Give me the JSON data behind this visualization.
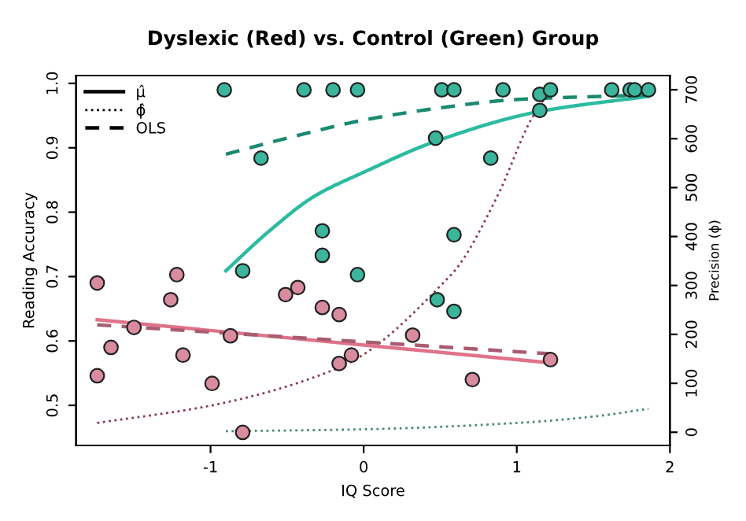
{
  "chart_data": {
    "type": "scatter",
    "title": "Dyslexic (Red) vs. Control (Green) Group",
    "xlabel": "IQ Score",
    "ylabel": "Reading Accuracy",
    "y2label": "Precision (ϕ)",
    "xlim": [
      -1.878,
      2.0
    ],
    "xticks": [
      -1,
      0,
      1,
      2
    ],
    "ylim": [
      0.4377,
      1.0122
    ],
    "yticks": [
      0.5,
      0.6,
      0.7,
      0.8,
      0.9,
      {
        "value": 1,
        "label": "1.0"
      }
    ],
    "y2lim": [
      -27,
      729
    ],
    "y2ticks": [
      0,
      100,
      200,
      300,
      400,
      500,
      600,
      700
    ],
    "grid": false,
    "annotations": [
      "μ̂",
      "ϕ̂",
      "OLS"
    ],
    "series": [
      {
        "marker": "circle",
        "color": "#3bb59b",
        "x": [
          -0.91,
          -0.39,
          -0.2,
          -0.04,
          0.51,
          0.59,
          0.91,
          1.15,
          1.22,
          1.62,
          1.74,
          1.77,
          1.86,
          -0.67,
          -0.27,
          -0.27,
          -0.79,
          -0.04,
          0.47,
          0.83,
          1.15,
          0.59,
          0.48,
          0.59
        ],
        "values": [
          0.99,
          0.99,
          0.99,
          0.99,
          0.99,
          0.99,
          0.99,
          0.983,
          0.99,
          0.99,
          0.99,
          0.99,
          0.99,
          0.884,
          0.771,
          0.733,
          0.709,
          0.703,
          0.915,
          0.884,
          0.958,
          0.765,
          0.664,
          0.646
        ]
      },
      {
        "marker": "circle",
        "color": "#d98ba0",
        "x": [
          -1.74,
          -1.22,
          -1.26,
          -1.5,
          -1.65,
          -1.74,
          -1.18,
          -0.99,
          -0.87,
          -0.79,
          -0.51,
          -0.43,
          -0.27,
          -0.16,
          -0.16,
          -0.08,
          0.32,
          0.71,
          1.22
        ],
        "values": [
          0.69,
          0.703,
          0.664,
          0.621,
          0.59,
          0.546,
          0.578,
          0.534,
          0.608,
          0.458,
          0.672,
          0.683,
          0.652,
          0.641,
          0.565,
          0.578,
          0.609,
          0.54,
          0.571
        ]
      },
      {
        "type": "line",
        "line_style": "solid",
        "color": "#e0728a",
        "x": [
          -1.74,
          1.22
        ],
        "values": [
          0.633,
          0.566
        ]
      },
      {
        "type": "line",
        "line_style": "dotted",
        "axis": "y2",
        "color": "#8b3a4a",
        "x": [
          -1.74,
          -0.99,
          -0.16,
          0,
          0.55,
          0.61,
          0.88,
          1.09,
          1.22
        ],
        "values": [
          19,
          55,
          132,
          159,
          315,
          336,
          487,
          637,
          700
        ]
      },
      {
        "type": "line",
        "line_style": "dashed",
        "color": "#a85c70",
        "x": [
          -1.74,
          1.22
        ],
        "values": [
          0.625,
          0.58
        ]
      },
      {
        "type": "line",
        "line_style": "solid",
        "color": "#2bbba0",
        "x": [
          -0.9,
          -0.62,
          -0.32,
          0,
          0.47,
          1.14,
          1.86
        ],
        "values": [
          0.709,
          0.77,
          0.825,
          0.862,
          0.91,
          0.956,
          0.98
        ]
      },
      {
        "type": "line",
        "line_style": "dashed",
        "color": "#1a8a70",
        "x": [
          -0.9,
          -0.5,
          0,
          0.5,
          1.0,
          1.86
        ],
        "values": [
          0.89,
          0.915,
          0.943,
          0.962,
          0.975,
          0.982
        ]
      },
      {
        "type": "line",
        "line_style": "dotted",
        "axis": "y2",
        "color": "#4e8a6a",
        "x": [
          -0.9,
          0,
          1,
          1.5,
          1.86
        ],
        "values": [
          2,
          6,
          19,
          32,
          48
        ]
      }
    ]
  }
}
